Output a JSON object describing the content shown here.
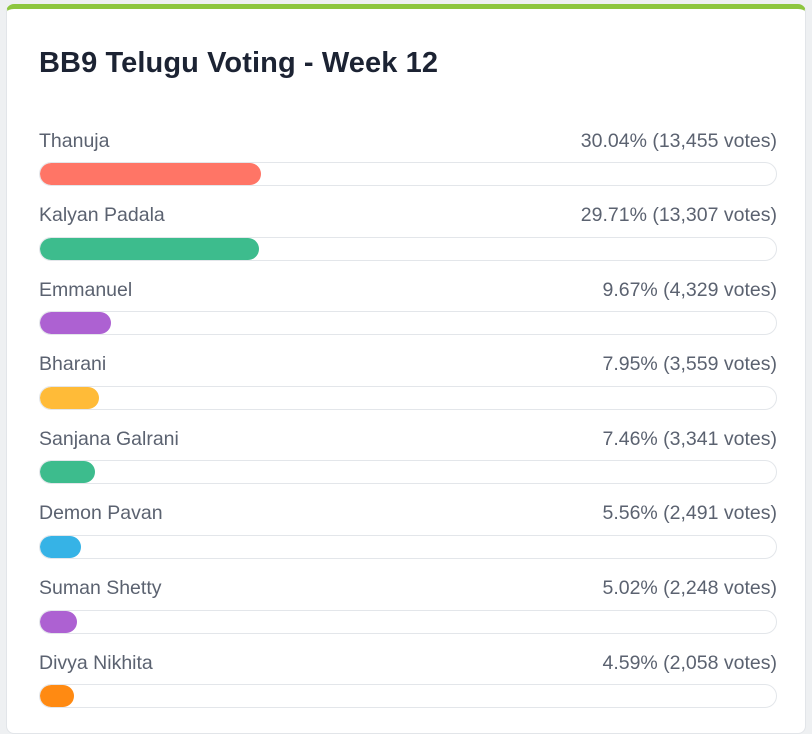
{
  "poll": {
    "title": "BB9 Telugu Voting - Week 12",
    "accent_color": "#8dc63f",
    "candidates": [
      {
        "name": "Thanuja",
        "result": "30.04% (13,455 votes)",
        "percent": 30.04,
        "color": "#ff7566"
      },
      {
        "name": "Kalyan Padala",
        "result": "29.71% (13,307 votes)",
        "percent": 29.71,
        "color": "#3dbc8d"
      },
      {
        "name": "Emmanuel",
        "result": "9.67% (4,329 votes)",
        "percent": 9.67,
        "color": "#ad61d2"
      },
      {
        "name": "Bharani",
        "result": "7.95% (3,559 votes)",
        "percent": 7.95,
        "color": "#ffbb38"
      },
      {
        "name": "Sanjana Galrani",
        "result": "7.46% (3,341 votes)",
        "percent": 7.46,
        "color": "#3dbc8d"
      },
      {
        "name": "Demon Pavan",
        "result": "5.56% (2,491 votes)",
        "percent": 5.56,
        "color": "#36b3e6"
      },
      {
        "name": "Suman Shetty",
        "result": "5.02% (2,248 votes)",
        "percent": 5.02,
        "color": "#ad61d2"
      },
      {
        "name": "Divya Nikhita",
        "result": "4.59% (2,058 votes)",
        "percent": 4.59,
        "color": "#ff8a12"
      }
    ]
  }
}
